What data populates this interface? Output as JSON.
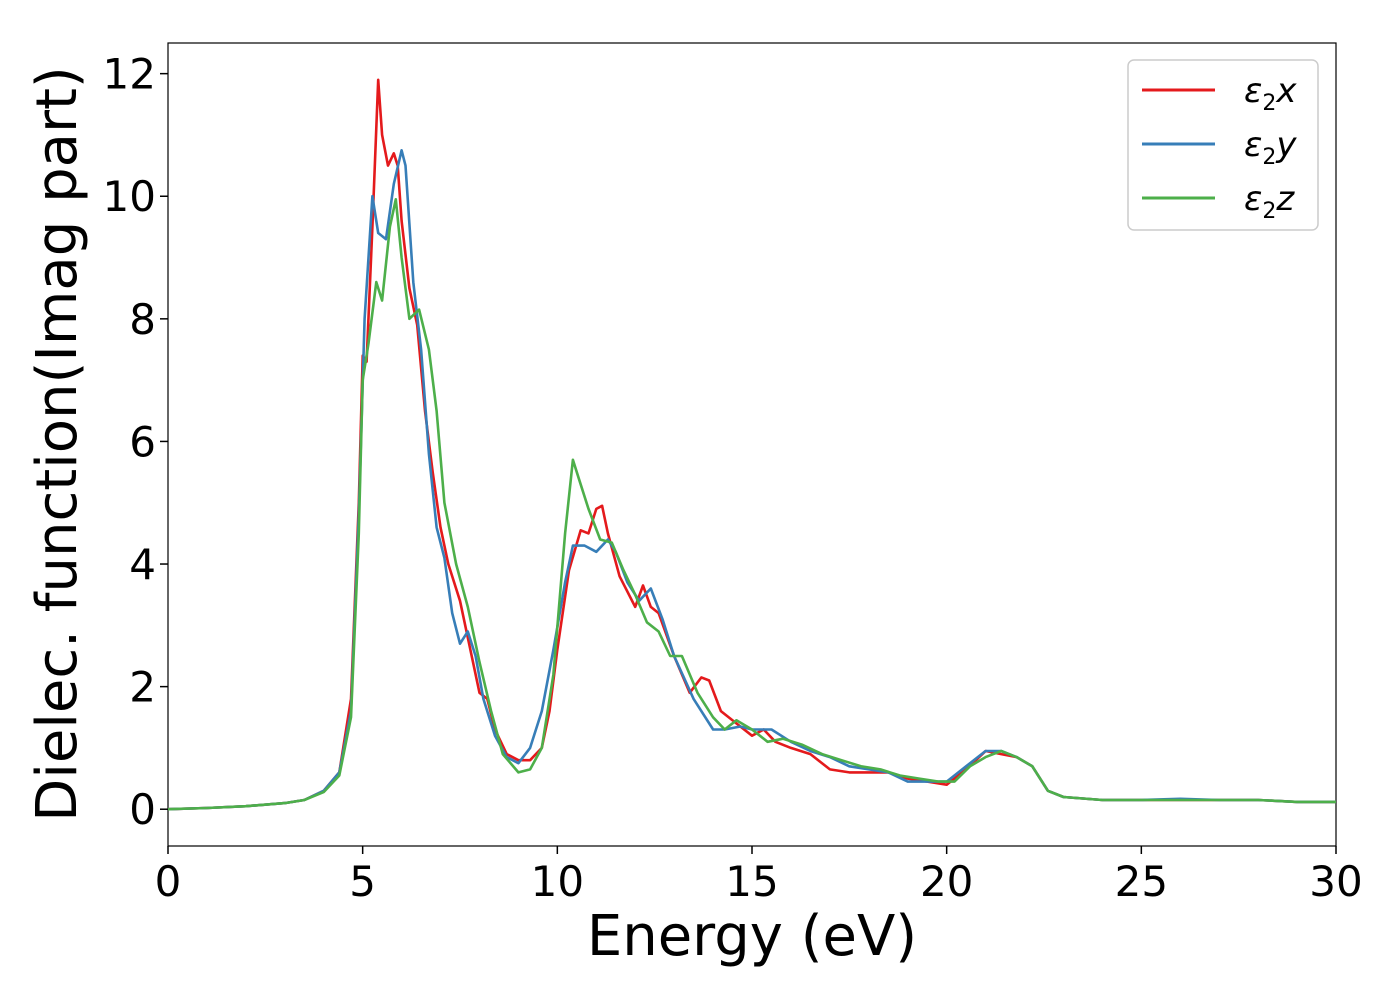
{
  "chart_data": {
    "type": "line",
    "xlabel": "Energy (eV)",
    "ylabel": "Dielec. function(Imag part)",
    "xlim": [
      0,
      30
    ],
    "ylim": [
      -0.6,
      12.5
    ],
    "xticks": [
      0,
      5,
      10,
      15,
      20,
      25,
      30
    ],
    "yticks": [
      0,
      2,
      4,
      6,
      8,
      10,
      12
    ],
    "grid": false,
    "legend_position": "top-right",
    "series": [
      {
        "name_main": "ε",
        "name_sub": "2",
        "name_suffix": "x",
        "color": "#e41a1c",
        "points": [
          [
            0,
            0
          ],
          [
            1,
            0.02
          ],
          [
            2,
            0.05
          ],
          [
            3,
            0.1
          ],
          [
            3.5,
            0.15
          ],
          [
            4,
            0.3
          ],
          [
            4.4,
            0.6
          ],
          [
            4.7,
            1.8
          ],
          [
            4.9,
            5.0
          ],
          [
            5.0,
            7.4
          ],
          [
            5.1,
            7.3
          ],
          [
            5.25,
            9.5
          ],
          [
            5.4,
            11.9
          ],
          [
            5.5,
            11.0
          ],
          [
            5.65,
            10.5
          ],
          [
            5.8,
            10.7
          ],
          [
            5.9,
            10.5
          ],
          [
            6.0,
            9.6
          ],
          [
            6.2,
            8.5
          ],
          [
            6.4,
            7.9
          ],
          [
            6.6,
            6.5
          ],
          [
            6.8,
            5.5
          ],
          [
            7.0,
            4.6
          ],
          [
            7.2,
            4.0
          ],
          [
            7.5,
            3.4
          ],
          [
            7.7,
            2.8
          ],
          [
            8.0,
            1.9
          ],
          [
            8.2,
            1.8
          ],
          [
            8.4,
            1.3
          ],
          [
            8.7,
            0.9
          ],
          [
            9.0,
            0.8
          ],
          [
            9.3,
            0.8
          ],
          [
            9.6,
            1.0
          ],
          [
            9.8,
            1.6
          ],
          [
            10.0,
            2.6
          ],
          [
            10.3,
            3.9
          ],
          [
            10.6,
            4.55
          ],
          [
            10.8,
            4.5
          ],
          [
            11.0,
            4.9
          ],
          [
            11.15,
            4.95
          ],
          [
            11.3,
            4.5
          ],
          [
            11.6,
            3.8
          ],
          [
            12.0,
            3.3
          ],
          [
            12.2,
            3.65
          ],
          [
            12.4,
            3.3
          ],
          [
            12.6,
            3.2
          ],
          [
            13.0,
            2.5
          ],
          [
            13.4,
            1.9
          ],
          [
            13.7,
            2.15
          ],
          [
            13.9,
            2.1
          ],
          [
            14.2,
            1.6
          ],
          [
            14.6,
            1.4
          ],
          [
            15.0,
            1.2
          ],
          [
            15.3,
            1.3
          ],
          [
            15.6,
            1.1
          ],
          [
            16.0,
            1.0
          ],
          [
            16.5,
            0.9
          ],
          [
            17.0,
            0.65
          ],
          [
            17.5,
            0.6
          ],
          [
            18.0,
            0.6
          ],
          [
            18.5,
            0.6
          ],
          [
            19.0,
            0.5
          ],
          [
            19.5,
            0.45
          ],
          [
            20.0,
            0.4
          ],
          [
            20.5,
            0.65
          ],
          [
            21.0,
            0.95
          ],
          [
            21.4,
            0.9
          ],
          [
            21.8,
            0.85
          ],
          [
            22.2,
            0.7
          ],
          [
            22.6,
            0.3
          ],
          [
            23.0,
            0.2
          ],
          [
            24.0,
            0.15
          ],
          [
            25.0,
            0.15
          ],
          [
            26.0,
            0.15
          ],
          [
            27.0,
            0.15
          ],
          [
            28.0,
            0.15
          ],
          [
            29.0,
            0.12
          ],
          [
            30.0,
            0.12
          ]
        ]
      },
      {
        "name_main": "ε",
        "name_sub": "2",
        "name_suffix": "y",
        "color": "#377eb8",
        "points": [
          [
            0,
            0
          ],
          [
            1,
            0.02
          ],
          [
            2,
            0.05
          ],
          [
            3,
            0.1
          ],
          [
            3.5,
            0.15
          ],
          [
            4,
            0.3
          ],
          [
            4.4,
            0.6
          ],
          [
            4.7,
            1.6
          ],
          [
            4.9,
            4.8
          ],
          [
            5.05,
            8.0
          ],
          [
            5.25,
            10.0
          ],
          [
            5.4,
            9.4
          ],
          [
            5.6,
            9.3
          ],
          [
            5.8,
            10.2
          ],
          [
            6.0,
            10.75
          ],
          [
            6.1,
            10.5
          ],
          [
            6.3,
            8.6
          ],
          [
            6.5,
            7.5
          ],
          [
            6.7,
            5.8
          ],
          [
            6.9,
            4.6
          ],
          [
            7.1,
            4.1
          ],
          [
            7.3,
            3.2
          ],
          [
            7.5,
            2.7
          ],
          [
            7.7,
            2.9
          ],
          [
            7.9,
            2.5
          ],
          [
            8.1,
            1.8
          ],
          [
            8.4,
            1.2
          ],
          [
            8.7,
            0.85
          ],
          [
            9.0,
            0.75
          ],
          [
            9.3,
            1.0
          ],
          [
            9.6,
            1.6
          ],
          [
            9.9,
            2.6
          ],
          [
            10.2,
            3.7
          ],
          [
            10.4,
            4.3
          ],
          [
            10.7,
            4.3
          ],
          [
            11.0,
            4.2
          ],
          [
            11.3,
            4.4
          ],
          [
            11.5,
            4.2
          ],
          [
            11.8,
            3.7
          ],
          [
            12.1,
            3.4
          ],
          [
            12.4,
            3.6
          ],
          [
            12.7,
            3.1
          ],
          [
            13.0,
            2.5
          ],
          [
            13.5,
            1.8
          ],
          [
            14.0,
            1.3
          ],
          [
            14.3,
            1.3
          ],
          [
            14.7,
            1.35
          ],
          [
            15.0,
            1.3
          ],
          [
            15.5,
            1.3
          ],
          [
            16.0,
            1.1
          ],
          [
            16.5,
            0.95
          ],
          [
            17.0,
            0.85
          ],
          [
            17.5,
            0.7
          ],
          [
            18.0,
            0.65
          ],
          [
            18.5,
            0.6
          ],
          [
            19.0,
            0.45
          ],
          [
            19.5,
            0.45
          ],
          [
            20.0,
            0.45
          ],
          [
            20.5,
            0.7
          ],
          [
            21.0,
            0.95
          ],
          [
            21.4,
            0.95
          ],
          [
            21.8,
            0.85
          ],
          [
            22.2,
            0.7
          ],
          [
            22.6,
            0.3
          ],
          [
            23.0,
            0.2
          ],
          [
            24.0,
            0.15
          ],
          [
            25.0,
            0.15
          ],
          [
            26.0,
            0.17
          ],
          [
            27.0,
            0.15
          ],
          [
            28.0,
            0.15
          ],
          [
            29.0,
            0.12
          ],
          [
            30.0,
            0.12
          ]
        ]
      },
      {
        "name_main": "ε",
        "name_sub": "2",
        "name_suffix": "z",
        "color": "#4daf4a",
        "points": [
          [
            0,
            0
          ],
          [
            1,
            0.02
          ],
          [
            2,
            0.05
          ],
          [
            3,
            0.1
          ],
          [
            3.5,
            0.15
          ],
          [
            4,
            0.28
          ],
          [
            4.4,
            0.55
          ],
          [
            4.7,
            1.5
          ],
          [
            4.9,
            4.5
          ],
          [
            5.0,
            7.0
          ],
          [
            5.15,
            7.6
          ],
          [
            5.35,
            8.6
          ],
          [
            5.5,
            8.3
          ],
          [
            5.7,
            9.5
          ],
          [
            5.85,
            9.95
          ],
          [
            6.0,
            9.0
          ],
          [
            6.2,
            8.0
          ],
          [
            6.45,
            8.15
          ],
          [
            6.7,
            7.5
          ],
          [
            6.9,
            6.5
          ],
          [
            7.1,
            5.0
          ],
          [
            7.4,
            4.0
          ],
          [
            7.7,
            3.3
          ],
          [
            8.0,
            2.4
          ],
          [
            8.3,
            1.6
          ],
          [
            8.6,
            0.9
          ],
          [
            9.0,
            0.6
          ],
          [
            9.3,
            0.65
          ],
          [
            9.6,
            1.0
          ],
          [
            9.9,
            2.2
          ],
          [
            10.2,
            4.5
          ],
          [
            10.4,
            5.7
          ],
          [
            10.55,
            5.4
          ],
          [
            10.8,
            4.9
          ],
          [
            11.1,
            4.4
          ],
          [
            11.4,
            4.35
          ],
          [
            11.7,
            3.9
          ],
          [
            12.0,
            3.5
          ],
          [
            12.3,
            3.05
          ],
          [
            12.6,
            2.9
          ],
          [
            12.9,
            2.5
          ],
          [
            13.2,
            2.5
          ],
          [
            13.6,
            1.9
          ],
          [
            14.0,
            1.5
          ],
          [
            14.3,
            1.3
          ],
          [
            14.6,
            1.45
          ],
          [
            15.0,
            1.3
          ],
          [
            15.4,
            1.1
          ],
          [
            15.8,
            1.15
          ],
          [
            16.3,
            1.05
          ],
          [
            16.8,
            0.9
          ],
          [
            17.3,
            0.8
          ],
          [
            17.8,
            0.7
          ],
          [
            18.3,
            0.65
          ],
          [
            18.8,
            0.55
          ],
          [
            19.3,
            0.5
          ],
          [
            19.8,
            0.45
          ],
          [
            20.2,
            0.45
          ],
          [
            20.6,
            0.7
          ],
          [
            21.0,
            0.85
          ],
          [
            21.4,
            0.95
          ],
          [
            21.8,
            0.85
          ],
          [
            22.2,
            0.7
          ],
          [
            22.6,
            0.3
          ],
          [
            23.0,
            0.2
          ],
          [
            24.0,
            0.15
          ],
          [
            25.0,
            0.15
          ],
          [
            26.0,
            0.15
          ],
          [
            27.0,
            0.15
          ],
          [
            28.0,
            0.15
          ],
          [
            29.0,
            0.12
          ],
          [
            30.0,
            0.12
          ]
        ]
      }
    ]
  }
}
